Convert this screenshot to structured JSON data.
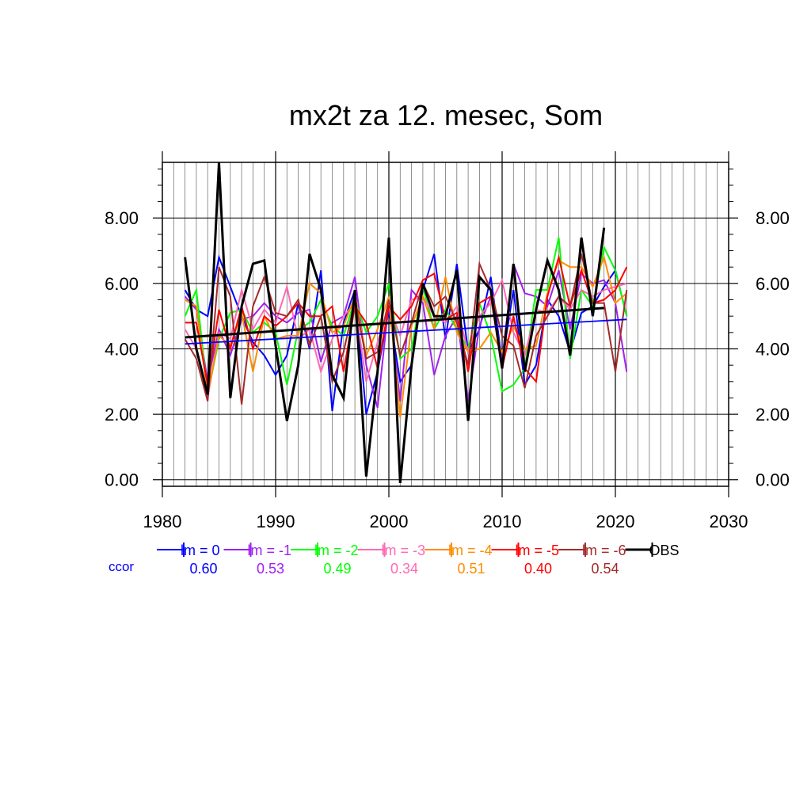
{
  "chart_data": {
    "type": "line",
    "title": "mx2t za 12. mesec, Som",
    "xlim": [
      1980,
      2030
    ],
    "ylim": [
      -0.2,
      9.7
    ],
    "x_ticks": [
      1980,
      1990,
      2000,
      2010,
      2020,
      2030
    ],
    "x_tick_labels": [
      "1980",
      "1990",
      "2000",
      "2010",
      "2020",
      "2030"
    ],
    "y_ticks": [
      0,
      2,
      4,
      6,
      8
    ],
    "y_tick_labels": [
      "0.00",
      "2.00",
      "4.00",
      "6.00",
      "8.00"
    ],
    "grid": true,
    "legend_position": "bottom",
    "ccor_label": "ccor",
    "x": [
      1982,
      1983,
      1984,
      1985,
      1986,
      1987,
      1988,
      1989,
      1990,
      1991,
      1992,
      1993,
      1994,
      1995,
      1996,
      1997,
      1998,
      1999,
      2000,
      2001,
      2002,
      2003,
      2004,
      2005,
      2006,
      2007,
      2008,
      2009,
      2010,
      2011,
      2012,
      2013,
      2014,
      2015,
      2016,
      2017,
      2018,
      2019,
      2020,
      2021
    ],
    "series": [
      {
        "name": "lm = 0",
        "color": "#0000ff",
        "ccor": "0.60",
        "values": [
          5.8,
          5.2,
          5.0,
          6.8,
          5.9,
          5.0,
          4.2,
          3.8,
          3.2,
          3.8,
          5.4,
          4.0,
          6.4,
          2.1,
          4.8,
          5.8,
          2.0,
          3.3,
          5.2,
          3.0,
          3.5,
          5.8,
          6.9,
          4.3,
          6.6,
          3.9,
          4.6,
          6.2,
          3.6,
          5.8,
          2.9,
          3.5,
          5.5,
          5.0,
          3.9,
          5.1,
          5.3,
          5.9,
          6.4,
          5.0
        ],
        "trend": [
          4.15,
          4.9
        ]
      },
      {
        "name": "lm = -1",
        "color": "#a020f0",
        "ccor": "0.53",
        "values": [
          5.6,
          5.2,
          3.0,
          4.6,
          3.8,
          4.9,
          5.0,
          5.4,
          5.0,
          4.8,
          5.1,
          5.2,
          3.6,
          4.8,
          5.0,
          6.2,
          3.5,
          2.2,
          5.4,
          2.4,
          5.8,
          5.4,
          3.2,
          4.4,
          5.0,
          2.4,
          4.7,
          5.6,
          3.7,
          6.6,
          5.7,
          5.6,
          5.3,
          6.4,
          4.6,
          6.3,
          6.0,
          6.1,
          5.4,
          3.3
        ]
      },
      {
        "name": "lm = -2",
        "color": "#00ff00",
        "ccor": "0.49",
        "values": [
          5.0,
          5.8,
          2.6,
          4.3,
          5.1,
          5.2,
          4.5,
          4.8,
          4.5,
          2.9,
          4.6,
          4.8,
          5.5,
          4.7,
          4.4,
          5.5,
          4.5,
          5.0,
          6.0,
          3.7,
          4.0,
          5.9,
          4.6,
          5.2,
          4.6,
          4.0,
          5.4,
          4.4,
          2.7,
          2.9,
          3.4,
          5.8,
          5.8,
          7.4,
          3.7,
          5.8,
          5.3,
          7.1,
          6.4,
          5.0
        ]
      },
      {
        "name": "lm = -3",
        "color": "#ff69b4",
        "ccor": "0.34",
        "values": [
          4.6,
          4.0,
          2.5,
          4.5,
          4.3,
          5.8,
          4.6,
          5.2,
          4.8,
          5.9,
          4.3,
          4.6,
          3.3,
          4.3,
          5.0,
          5.4,
          3.0,
          4.2,
          5.3,
          4.4,
          5.5,
          5.6,
          5.0,
          4.8,
          5.3,
          3.9,
          5.0,
          5.4,
          6.1,
          4.5,
          3.8,
          5.2,
          5.1,
          5.6,
          5.2,
          5.8,
          5.6,
          5.8,
          5.9,
          6.0
        ]
      },
      {
        "name": "lm = -4",
        "color": "#ff8c00",
        "ccor": "0.51",
        "values": [
          5.5,
          5.3,
          2.6,
          4.4,
          4.1,
          5.1,
          3.3,
          5.0,
          4.3,
          4.4,
          4.4,
          6.0,
          5.7,
          4.5,
          4.7,
          5.6,
          3.8,
          4.6,
          5.6,
          1.9,
          4.7,
          5.6,
          4.6,
          6.2,
          4.5,
          3.9,
          4.0,
          4.5,
          3.9,
          4.7,
          4.0,
          4.1,
          5.7,
          6.7,
          6.5,
          6.5,
          5.9,
          6.8,
          5.4,
          5.7
        ]
      },
      {
        "name": "lm = -5",
        "color": "#ff0000",
        "ccor": "0.40",
        "values": [
          4.8,
          4.8,
          2.9,
          5.2,
          4.0,
          5.3,
          4.0,
          5.0,
          4.7,
          5.0,
          5.4,
          5.0,
          5.0,
          5.3,
          3.3,
          5.3,
          4.8,
          3.4,
          5.3,
          4.9,
          5.3,
          6.1,
          6.3,
          4.9,
          5.1,
          3.3,
          5.4,
          5.6,
          3.4,
          5.0,
          3.4,
          3.0,
          5.6,
          6.8,
          5.3,
          6.4,
          5.4,
          5.5,
          5.8,
          6.5
        ]
      },
      {
        "name": "lm = -6",
        "color": "#a52a2a",
        "ccor": "0.54",
        "values": [
          4.3,
          3.7,
          2.4,
          6.5,
          5.6,
          2.3,
          5.3,
          6.2,
          5.1,
          5.0,
          5.5,
          4.1,
          5.0,
          3.0,
          3.9,
          5.5,
          3.7,
          3.9,
          5.5,
          3.8,
          4.8,
          6.0,
          5.3,
          5.6,
          4.8,
          3.5,
          6.6,
          5.8,
          4.4,
          4.1,
          2.8,
          4.4,
          5.0,
          5.6,
          5.3,
          6.9,
          5.4,
          5.4,
          3.3,
          5.8
        ]
      },
      {
        "name": "OBS",
        "color": "#000000",
        "ccor": "",
        "x": [
          1982,
          1983,
          1984,
          1985,
          1986,
          1987,
          1988,
          1989,
          1990,
          1991,
          1992,
          1993,
          1994,
          1995,
          1996,
          1997,
          1998,
          1999,
          2000,
          2001,
          2002,
          2003,
          2004,
          2005,
          2006,
          2007,
          2008,
          2009,
          2010,
          2011,
          2012,
          2013,
          2014,
          2015,
          2016,
          2017,
          2018,
          2019
        ],
        "values": [
          6.8,
          4.0,
          2.6,
          9.7,
          2.5,
          5.3,
          6.6,
          6.7,
          4.1,
          1.8,
          3.5,
          6.9,
          5.8,
          3.2,
          2.5,
          5.8,
          0.1,
          3.3,
          7.4,
          -0.1,
          3.5,
          6.0,
          5.0,
          5.0,
          6.4,
          1.8,
          6.2,
          5.8,
          3.4,
          6.6,
          3.3,
          5.2,
          6.7,
          5.8,
          3.8,
          7.4,
          5.0,
          7.7
        ],
        "trend": [
          4.35,
          5.25
        ]
      }
    ]
  }
}
